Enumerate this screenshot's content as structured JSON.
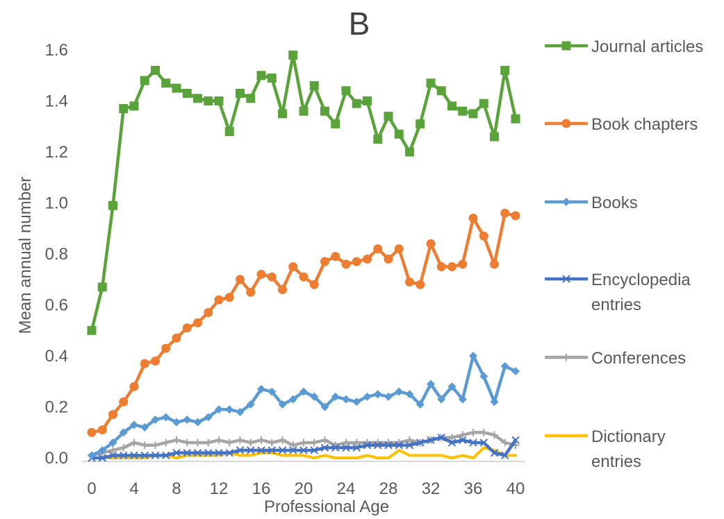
{
  "chart_data": {
    "type": "line",
    "title": "B",
    "xlabel": "Professional Age",
    "ylabel": "Mean annual number",
    "xlim": [
      0,
      40
    ],
    "ylim": [
      0,
      1.6
    ],
    "x_ticks": [
      "0",
      "4",
      "8",
      "12",
      "16",
      "20",
      "24",
      "28",
      "32",
      "36",
      "40"
    ],
    "y_ticks": [
      "0.0",
      "0.2",
      "0.4",
      "0.6",
      "0.8",
      "1.0",
      "1.2",
      "1.4",
      "1.6"
    ],
    "x": [
      0,
      1,
      2,
      3,
      4,
      5,
      6,
      7,
      8,
      9,
      10,
      11,
      12,
      13,
      14,
      15,
      16,
      17,
      18,
      19,
      20,
      21,
      22,
      23,
      24,
      25,
      26,
      27,
      28,
      29,
      30,
      31,
      32,
      33,
      34,
      35,
      36,
      37,
      38,
      39,
      40
    ],
    "grid": false,
    "legend_position": "right",
    "series": [
      {
        "name": "Journal articles",
        "color": "#5aa33a",
        "marker": "square",
        "values": [
          0.5,
          0.67,
          0.99,
          1.37,
          1.38,
          1.48,
          1.52,
          1.47,
          1.45,
          1.43,
          1.41,
          1.4,
          1.4,
          1.28,
          1.43,
          1.41,
          1.5,
          1.49,
          1.35,
          1.58,
          1.36,
          1.46,
          1.36,
          1.31,
          1.44,
          1.39,
          1.4,
          1.25,
          1.34,
          1.27,
          1.2,
          1.31,
          1.47,
          1.44,
          1.38,
          1.36,
          1.35,
          1.39,
          1.26,
          1.52,
          1.33
        ]
      },
      {
        "name": "Book chapters",
        "color": "#ed7d31",
        "marker": "circle",
        "values": [
          0.1,
          0.11,
          0.17,
          0.22,
          0.28,
          0.37,
          0.38,
          0.43,
          0.47,
          0.51,
          0.53,
          0.57,
          0.62,
          0.63,
          0.7,
          0.65,
          0.72,
          0.71,
          0.66,
          0.75,
          0.71,
          0.68,
          0.77,
          0.79,
          0.76,
          0.77,
          0.78,
          0.82,
          0.78,
          0.82,
          0.69,
          0.68,
          0.84,
          0.75,
          0.75,
          0.76,
          0.94,
          0.87,
          0.76,
          0.96,
          0.95
        ]
      },
      {
        "name": "Books",
        "color": "#5b9bd5",
        "marker": "diamond",
        "values": [
          0.01,
          0.03,
          0.06,
          0.1,
          0.13,
          0.12,
          0.15,
          0.16,
          0.14,
          0.15,
          0.14,
          0.16,
          0.19,
          0.19,
          0.18,
          0.21,
          0.27,
          0.26,
          0.21,
          0.23,
          0.26,
          0.24,
          0.2,
          0.24,
          0.23,
          0.22,
          0.24,
          0.25,
          0.24,
          0.26,
          0.25,
          0.21,
          0.29,
          0.23,
          0.28,
          0.23,
          0.4,
          0.32,
          0.22,
          0.36,
          0.34
        ]
      },
      {
        "name": "Encyclopedia entries",
        "color": "#4472c4",
        "marker": "x",
        "values": [
          0.0,
          0.0,
          0.01,
          0.01,
          0.01,
          0.01,
          0.01,
          0.01,
          0.02,
          0.02,
          0.02,
          0.02,
          0.02,
          0.02,
          0.03,
          0.03,
          0.03,
          0.03,
          0.03,
          0.03,
          0.03,
          0.03,
          0.04,
          0.04,
          0.04,
          0.04,
          0.05,
          0.05,
          0.05,
          0.05,
          0.05,
          0.06,
          0.07,
          0.08,
          0.06,
          0.07,
          0.06,
          0.06,
          0.02,
          0.01,
          0.07
        ]
      },
      {
        "name": "Conferences",
        "color": "#a5a5a5",
        "marker": "plus",
        "values": [
          0.01,
          0.02,
          0.03,
          0.04,
          0.06,
          0.05,
          0.05,
          0.06,
          0.07,
          0.06,
          0.06,
          0.06,
          0.07,
          0.06,
          0.07,
          0.06,
          0.07,
          0.06,
          0.07,
          0.05,
          0.06,
          0.06,
          0.07,
          0.05,
          0.06,
          0.06,
          0.06,
          0.06,
          0.06,
          0.06,
          0.07,
          0.06,
          0.07,
          0.08,
          0.08,
          0.09,
          0.1,
          0.1,
          0.09,
          0.06,
          0.05
        ]
      },
      {
        "name": "Dictionary entries",
        "color": "#ffc000",
        "marker": "none",
        "values": [
          0.0,
          0.0,
          0.0,
          0.0,
          0.0,
          0.0,
          0.01,
          0.01,
          0.0,
          0.01,
          0.01,
          0.01,
          0.01,
          0.02,
          0.01,
          0.01,
          0.02,
          0.02,
          0.01,
          0.01,
          0.01,
          0.0,
          0.01,
          0.0,
          0.0,
          0.0,
          0.01,
          0.0,
          0.0,
          0.03,
          0.01,
          0.01,
          0.01,
          0.01,
          0.0,
          0.01,
          0.0,
          0.04,
          0.03,
          0.01,
          0.01
        ]
      }
    ],
    "legend_labels": [
      [
        "Journal articles"
      ],
      [
        "Book chapters"
      ],
      [
        "Books"
      ],
      [
        "Encyclopedia",
        "entries"
      ],
      [
        "Conferences"
      ],
      [
        "Dictionary",
        "entries"
      ]
    ]
  }
}
